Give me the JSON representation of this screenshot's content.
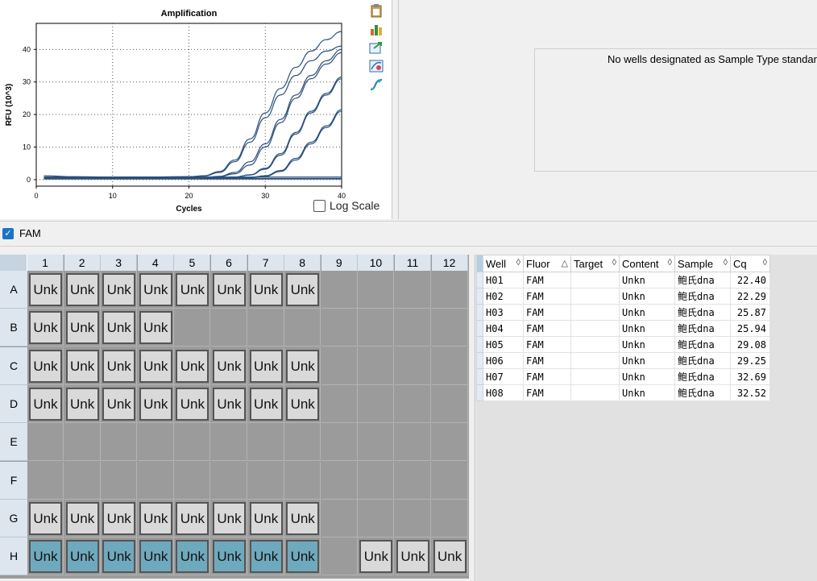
{
  "chart": {
    "title": "Amplification",
    "xlabel": "Cycles",
    "ylabel": "RFU (10^3)",
    "log_scale_label": "Log Scale",
    "log_scale_checked": false,
    "line_color": "#2b4f7d"
  },
  "chart_data": {
    "type": "line",
    "title": "Amplification",
    "xlabel": "Cycles",
    "ylabel": "RFU (10^3)",
    "xlim": [
      0,
      40
    ],
    "ylim": [
      -2,
      48
    ],
    "xticks": [
      0,
      10,
      20,
      30,
      40
    ],
    "yticks": [
      0,
      10,
      20,
      30,
      40
    ],
    "grid": true,
    "x": [
      1,
      5,
      10,
      15,
      20,
      22,
      24,
      26,
      28,
      30,
      32,
      34,
      36,
      38,
      40
    ],
    "series": [
      {
        "values": [
          0.8,
          0.8,
          0.8,
          0.8,
          0.9,
          1.2,
          2.5,
          6.0,
          12.5,
          20.5,
          28.0,
          34.5,
          39.5,
          43.0,
          45.5
        ]
      },
      {
        "values": [
          0.8,
          0.8,
          0.8,
          0.8,
          0.9,
          1.1,
          2.2,
          5.5,
          11.5,
          19.0,
          26.0,
          32.0,
          36.5,
          39.5,
          41.0
        ]
      },
      {
        "values": [
          0.6,
          0.6,
          0.6,
          0.6,
          0.6,
          0.7,
          1.0,
          2.2,
          5.5,
          11.0,
          18.5,
          26.0,
          32.0,
          36.5,
          40.0
        ]
      },
      {
        "values": [
          0.6,
          0.6,
          0.6,
          0.6,
          0.6,
          0.7,
          0.9,
          1.8,
          4.5,
          10.0,
          17.5,
          25.0,
          31.0,
          35.5,
          39.0
        ]
      },
      {
        "values": [
          0.5,
          0.5,
          0.5,
          0.5,
          0.5,
          0.5,
          0.6,
          0.8,
          1.5,
          3.5,
          8.0,
          14.5,
          21.0,
          26.5,
          31.5
        ]
      },
      {
        "values": [
          0.5,
          0.5,
          0.5,
          0.5,
          0.5,
          0.5,
          0.6,
          0.8,
          1.4,
          3.2,
          7.5,
          14.0,
          20.5,
          26.0,
          31.0
        ]
      },
      {
        "values": [
          0.4,
          0.4,
          0.4,
          0.4,
          0.4,
          0.4,
          0.4,
          0.5,
          0.7,
          1.2,
          2.8,
          6.5,
          11.5,
          16.5,
          21.5
        ]
      },
      {
        "values": [
          0.4,
          0.4,
          0.4,
          0.4,
          0.4,
          0.4,
          0.4,
          0.5,
          0.6,
          1.0,
          2.5,
          6.0,
          11.0,
          16.0,
          21.0
        ]
      },
      {
        "values": [
          0.4,
          0.4,
          0.4,
          0.4,
          0.4,
          0.4,
          0.4,
          0.4,
          0.4,
          0.4,
          0.4,
          0.4,
          0.4,
          0.4,
          0.4
        ]
      },
      {
        "values": [
          0.3,
          0.3,
          0.3,
          0.3,
          0.3,
          0.3,
          0.3,
          0.3,
          0.3,
          0.3,
          0.3,
          0.3,
          0.3,
          0.3,
          0.3
        ]
      },
      {
        "values": [
          1.2,
          0.9,
          0.8,
          0.8,
          0.8,
          0.8,
          0.8,
          0.8,
          0.8,
          0.8,
          0.8,
          0.8,
          0.8,
          0.8,
          0.8
        ]
      },
      {
        "values": [
          0.2,
          0.2,
          0.2,
          0.2,
          0.2,
          0.2,
          0.2,
          0.2,
          0.2,
          0.2,
          0.2,
          0.2,
          0.2,
          0.2,
          0.2
        ]
      }
    ]
  },
  "toolbar_icons": [
    "clipboard-icon",
    "bar-chart-icon",
    "export-icon",
    "chart-settings-icon",
    "curve-icon"
  ],
  "std_curve": {
    "message": "No wells designated as Sample Type standard"
  },
  "fluor_bar": {
    "label": "FAM",
    "checked": true
  },
  "plate": {
    "columns": [
      "1",
      "2",
      "3",
      "4",
      "5",
      "6",
      "7",
      "8",
      "9",
      "10",
      "11",
      "12"
    ],
    "rows": [
      {
        "label": "A",
        "wells": [
          "Unk",
          "Unk",
          "Unk",
          "Unk",
          "Unk",
          "Unk",
          "Unk",
          "Unk",
          "",
          "",
          "",
          ""
        ]
      },
      {
        "label": "B",
        "wells": [
          "Unk",
          "Unk",
          "Unk",
          "Unk",
          "",
          "",
          "",
          "",
          "",
          "",
          "",
          ""
        ]
      },
      {
        "label": "C",
        "wells": [
          "Unk",
          "Unk",
          "Unk",
          "Unk",
          "Unk",
          "Unk",
          "Unk",
          "Unk",
          "",
          "",
          "",
          ""
        ]
      },
      {
        "label": "D",
        "wells": [
          "Unk",
          "Unk",
          "Unk",
          "Unk",
          "Unk",
          "Unk",
          "Unk",
          "Unk",
          "",
          "",
          "",
          ""
        ]
      },
      {
        "label": "E",
        "wells": [
          "",
          "",
          "",
          "",
          "",
          "",
          "",
          "",
          "",
          "",
          "",
          ""
        ]
      },
      {
        "label": "F",
        "wells": [
          "",
          "",
          "",
          "",
          "",
          "",
          "",
          "",
          "",
          "",
          "",
          ""
        ]
      },
      {
        "label": "G",
        "wells": [
          "Unk",
          "Unk",
          "Unk",
          "Unk",
          "Unk",
          "Unk",
          "Unk",
          "Unk",
          "",
          "",
          "",
          ""
        ]
      },
      {
        "label": "H",
        "wells": [
          "Unk",
          "Unk",
          "Unk",
          "Unk",
          "Unk",
          "Unk",
          "Unk",
          "Unk",
          "",
          "Unk",
          "Unk",
          "Unk"
        ],
        "selected_count": 8
      }
    ],
    "selected_color": "#6fa9bd",
    "well_color": "#d9d9d9",
    "empty_color": "#9b9b9b"
  },
  "table": {
    "headers": [
      "Well",
      "Fluor",
      "Target",
      "Content",
      "Sample",
      "Cq"
    ],
    "rows": [
      {
        "well": "H01",
        "fluor": "FAM",
        "target": "",
        "content": "Unkn",
        "sample": "鲍氏dna",
        "cq": "22.40"
      },
      {
        "well": "H02",
        "fluor": "FAM",
        "target": "",
        "content": "Unkn",
        "sample": "鲍氏dna",
        "cq": "22.29"
      },
      {
        "well": "H03",
        "fluor": "FAM",
        "target": "",
        "content": "Unkn",
        "sample": "鲍氏dna",
        "cq": "25.87"
      },
      {
        "well": "H04",
        "fluor": "FAM",
        "target": "",
        "content": "Unkn",
        "sample": "鲍氏dna",
        "cq": "25.94"
      },
      {
        "well": "H05",
        "fluor": "FAM",
        "target": "",
        "content": "Unkn",
        "sample": "鲍氏dna",
        "cq": "29.08"
      },
      {
        "well": "H06",
        "fluor": "FAM",
        "target": "",
        "content": "Unkn",
        "sample": "鲍氏dna",
        "cq": "29.25"
      },
      {
        "well": "H07",
        "fluor": "FAM",
        "target": "",
        "content": "Unkn",
        "sample": "鲍氏dna",
        "cq": "32.69"
      },
      {
        "well": "H08",
        "fluor": "FAM",
        "target": "",
        "content": "Unkn",
        "sample": "鲍氏dna",
        "cq": "32.52"
      }
    ]
  }
}
